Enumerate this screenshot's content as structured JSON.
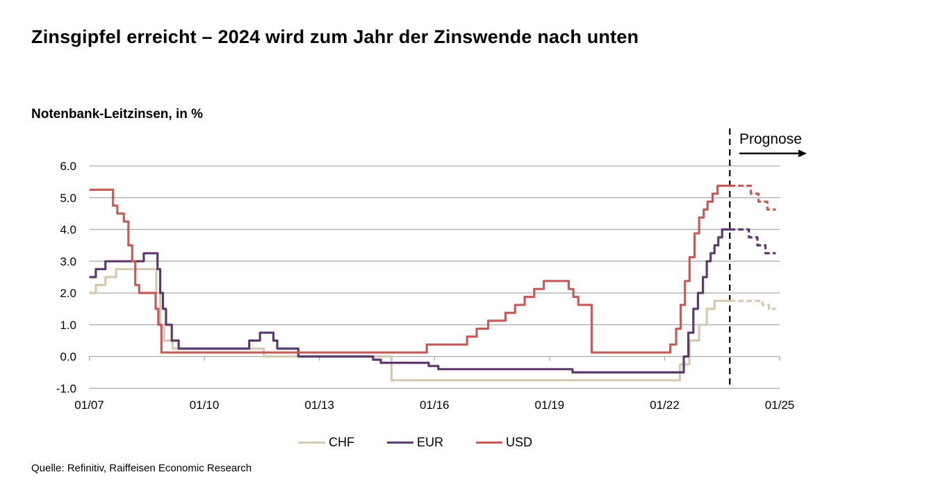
{
  "title": "Zinsgipfel erreicht – 2024 wird zum Jahr der Zinswende nach unten",
  "subtitle": "Notenbank-Leitzinsen, in %",
  "source": "Quelle: Refinitiv, Raiffeisen Economic Research",
  "forecast": {
    "label": "Prognose"
  },
  "colors": {
    "chf": "#d5c9b1",
    "eur": "#5c3a6e",
    "usd": "#c75b57",
    "grid": "#a9a9a9",
    "divider": "#000000"
  },
  "legend": {
    "items": [
      {
        "label": "CHF",
        "color": "#d5c9b1"
      },
      {
        "label": "EUR",
        "color": "#5c3a6e"
      },
      {
        "label": "USD",
        "color": "#c75b57"
      }
    ]
  },
  "chart_data": {
    "type": "line",
    "title": "Notenbank-Leitzinsen, in %",
    "unit": "percent",
    "grid": "horizontal",
    "legend_position": "bottom",
    "xlim": [
      2007.0,
      2025.0
    ],
    "ylim": [
      -1.0,
      6.0
    ],
    "x_ticks": [
      {
        "t": 2007,
        "label": "01/07"
      },
      {
        "t": 2010,
        "label": "01/10"
      },
      {
        "t": 2013,
        "label": "01/13"
      },
      {
        "t": 2016,
        "label": "01/16"
      },
      {
        "t": 2019,
        "label": "01/19"
      },
      {
        "t": 2022,
        "label": "01/22"
      },
      {
        "t": 2025,
        "label": "01/25"
      }
    ],
    "y_ticks": [
      {
        "v": 6.0,
        "label": "6.0"
      },
      {
        "v": 5.0,
        "label": "5.0"
      },
      {
        "v": 4.0,
        "label": "4.0"
      },
      {
        "v": 3.0,
        "label": "3.0"
      },
      {
        "v": 2.0,
        "label": "2.0"
      },
      {
        "v": 1.0,
        "label": "1.0"
      },
      {
        "v": 0.0,
        "label": "0.0"
      },
      {
        "v": -1.0,
        "label": "-1.0"
      }
    ],
    "forecast_start": 2023.7,
    "forecast_end": 2024.9,
    "series": [
      {
        "name": "CHF",
        "color": "#d5c9b1",
        "solid": [
          [
            2007.0,
            2.0
          ],
          [
            2007.17,
            2.25
          ],
          [
            2007.42,
            2.5
          ],
          [
            2007.7,
            2.75
          ],
          [
            2008.75,
            2.0
          ],
          [
            2008.85,
            1.0
          ],
          [
            2008.95,
            0.5
          ],
          [
            2009.17,
            0.25
          ],
          [
            2011.55,
            0.0
          ],
          [
            2014.88,
            -0.75
          ],
          [
            2022.4,
            -0.25
          ],
          [
            2022.65,
            0.5
          ],
          [
            2022.9,
            1.0
          ],
          [
            2023.1,
            1.5
          ],
          [
            2023.3,
            1.75
          ]
        ],
        "forecast": [
          [
            2023.7,
            1.75
          ],
          [
            2024.55,
            1.625
          ],
          [
            2024.72,
            1.5
          ]
        ]
      },
      {
        "name": "EUR",
        "color": "#5c3a6e",
        "solid": [
          [
            2007.0,
            2.5
          ],
          [
            2007.17,
            2.75
          ],
          [
            2007.42,
            3.0
          ],
          [
            2008.42,
            3.25
          ],
          [
            2008.78,
            2.75
          ],
          [
            2008.85,
            2.0
          ],
          [
            2008.92,
            1.5
          ],
          [
            2009.0,
            1.0
          ],
          [
            2009.15,
            0.5
          ],
          [
            2009.33,
            0.25
          ],
          [
            2011.17,
            0.5
          ],
          [
            2011.45,
            0.75
          ],
          [
            2011.8,
            0.5
          ],
          [
            2011.9,
            0.25
          ],
          [
            2012.45,
            0.0
          ],
          [
            2014.4,
            -0.1
          ],
          [
            2014.6,
            -0.2
          ],
          [
            2015.85,
            -0.3
          ],
          [
            2016.1,
            -0.4
          ],
          [
            2019.6,
            -0.5
          ],
          [
            2022.5,
            0.0
          ],
          [
            2022.62,
            0.75
          ],
          [
            2022.75,
            1.5
          ],
          [
            2022.87,
            2.0
          ],
          [
            2023.0,
            2.5
          ],
          [
            2023.1,
            3.0
          ],
          [
            2023.2,
            3.25
          ],
          [
            2023.3,
            3.5
          ],
          [
            2023.4,
            3.75
          ],
          [
            2023.5,
            4.0
          ]
        ],
        "forecast": [
          [
            2023.7,
            4.0
          ],
          [
            2024.2,
            3.75
          ],
          [
            2024.42,
            3.5
          ],
          [
            2024.63,
            3.25
          ]
        ]
      },
      {
        "name": "USD",
        "color": "#c75b57",
        "solid": [
          [
            2007.0,
            5.25
          ],
          [
            2007.62,
            4.75
          ],
          [
            2007.73,
            4.5
          ],
          [
            2007.9,
            4.25
          ],
          [
            2008.02,
            3.5
          ],
          [
            2008.12,
            3.0
          ],
          [
            2008.2,
            2.25
          ],
          [
            2008.3,
            2.0
          ],
          [
            2008.73,
            1.5
          ],
          [
            2008.8,
            1.0
          ],
          [
            2008.88,
            0.125
          ],
          [
            2015.8,
            0.375
          ],
          [
            2016.85,
            0.625
          ],
          [
            2017.1,
            0.875
          ],
          [
            2017.4,
            1.125
          ],
          [
            2017.85,
            1.375
          ],
          [
            2018.1,
            1.625
          ],
          [
            2018.35,
            1.875
          ],
          [
            2018.6,
            2.125
          ],
          [
            2018.85,
            2.375
          ],
          [
            2019.5,
            2.125
          ],
          [
            2019.62,
            1.875
          ],
          [
            2019.75,
            1.625
          ],
          [
            2020.1,
            0.125
          ],
          [
            2022.15,
            0.375
          ],
          [
            2022.3,
            0.875
          ],
          [
            2022.42,
            1.625
          ],
          [
            2022.53,
            2.375
          ],
          [
            2022.65,
            3.125
          ],
          [
            2022.78,
            3.875
          ],
          [
            2022.9,
            4.375
          ],
          [
            2023.02,
            4.625
          ],
          [
            2023.12,
            4.875
          ],
          [
            2023.25,
            5.125
          ],
          [
            2023.38,
            5.375
          ]
        ],
        "forecast": [
          [
            2023.7,
            5.375
          ],
          [
            2024.25,
            5.125
          ],
          [
            2024.45,
            4.875
          ],
          [
            2024.68,
            4.625
          ]
        ]
      }
    ]
  }
}
